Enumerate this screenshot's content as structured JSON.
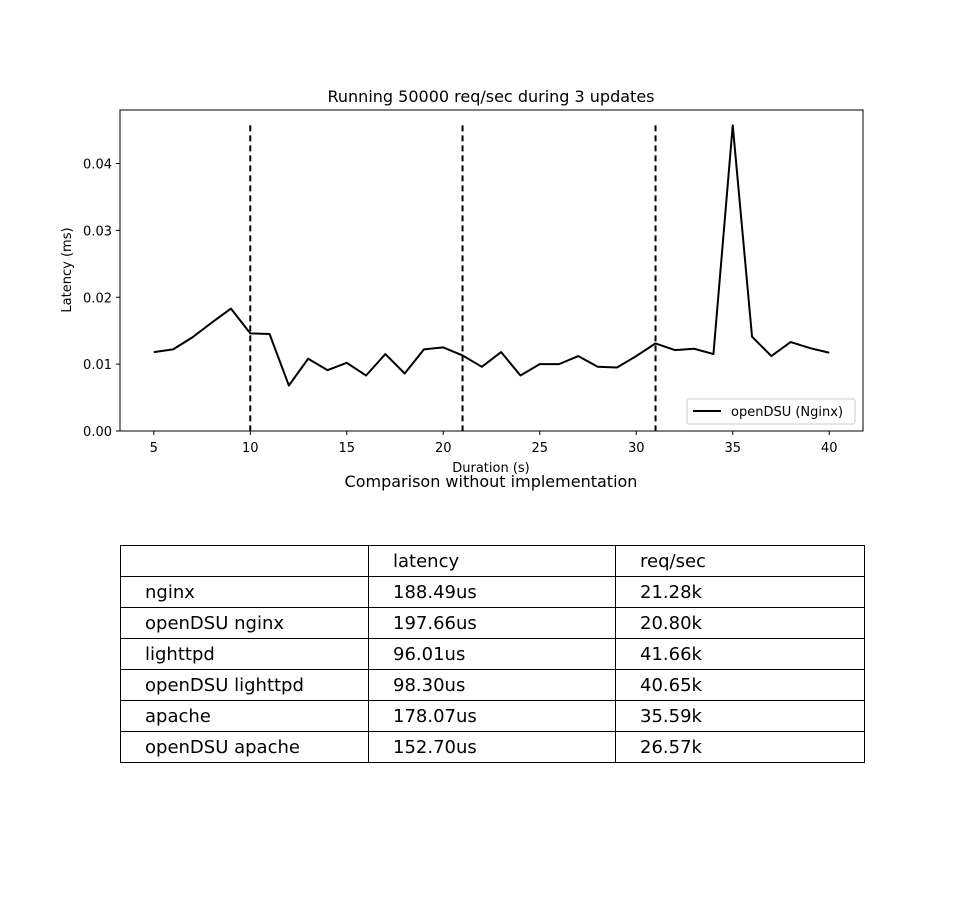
{
  "chart_data": [
    {
      "type": "line",
      "title": "Running 50000 req/sec during 3 updates",
      "xlabel": "Duration (s)",
      "ylabel": "Latency (ms)",
      "xlim": [
        3.25,
        41.75
      ],
      "ylim": [
        0,
        0.048
      ],
      "xticks": [
        5,
        10,
        15,
        20,
        25,
        30,
        35,
        40
      ],
      "yticks": [
        0,
        0.01,
        0.02,
        0.03,
        0.04
      ],
      "ytick_labels": [
        "0.00",
        "0.01",
        "0.02",
        "0.03",
        "0.04"
      ],
      "grid": false,
      "legend": "lower-right",
      "series": [
        {
          "name": "openDSU (Nginx)",
          "color": "#000000",
          "x": [
            5,
            6,
            7,
            8,
            9,
            10,
            11,
            12,
            13,
            14,
            15,
            16,
            17,
            18,
            19,
            20,
            21,
            22,
            23,
            24,
            25,
            26,
            27,
            28,
            29,
            30,
            31,
            32,
            33,
            34,
            35,
            36,
            37,
            38,
            39,
            40
          ],
          "y": [
            0.0118,
            0.0122,
            0.014,
            0.0162,
            0.0183,
            0.0146,
            0.0145,
            0.0068,
            0.0108,
            0.0091,
            0.0102,
            0.0083,
            0.0115,
            0.0086,
            0.0122,
            0.0125,
            0.0113,
            0.0096,
            0.0118,
            0.0083,
            0.01,
            0.01,
            0.0112,
            0.0096,
            0.0095,
            0.0112,
            0.0131,
            0.0121,
            0.0123,
            0.0115,
            0.0457,
            0.0141,
            0.0112,
            0.0133,
            0.0124,
            0.0117
          ]
        }
      ],
      "vlines": [
        10,
        21,
        31
      ]
    },
    {
      "type": "table",
      "title": "Comparison without implementation",
      "columns": [
        "",
        "latency",
        "req/sec"
      ],
      "rows": [
        [
          "nginx",
          "188.49us",
          "21.28k"
        ],
        [
          "openDSU nginx",
          "197.66us",
          "20.80k"
        ],
        [
          "lighttpd",
          "96.01us",
          "41.66k"
        ],
        [
          "openDSU lighttpd",
          "98.30us",
          "40.65k"
        ],
        [
          "apache",
          "178.07us",
          "35.59k"
        ],
        [
          "openDSU apache",
          "152.70us",
          "26.57k"
        ]
      ]
    }
  ]
}
